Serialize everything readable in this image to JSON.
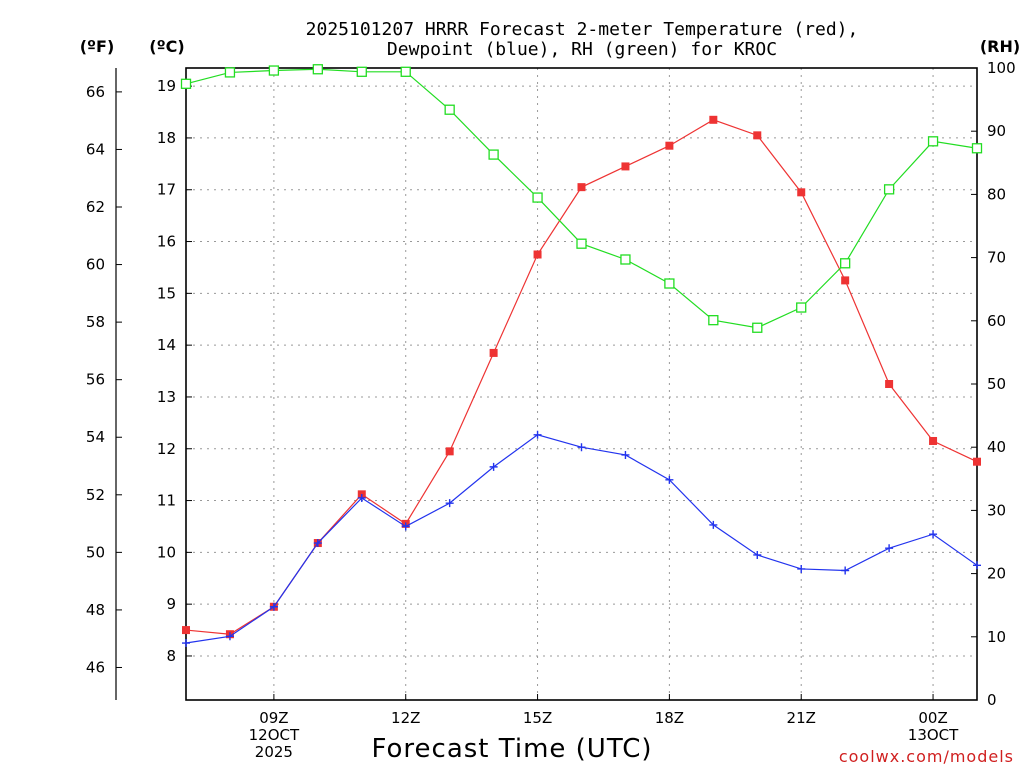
{
  "chart_data": {
    "type": "line",
    "title_line1": "2025101207 HRRR Forecast 2-meter Temperature (red),",
    "title_line2": "Dewpoint (blue), RH (green) for KROC",
    "xlabel": "Forecast Time (UTC)",
    "credit": "coolwx.com/models",
    "unit_left_f": "(ºF)",
    "unit_left_c": "(ºC)",
    "unit_right": "(RH)",
    "x_range": [
      7,
      25
    ],
    "x_ticks": [
      {
        "x": 9,
        "lines": [
          "09Z",
          "12OCT",
          "2025"
        ]
      },
      {
        "x": 12,
        "lines": [
          "12Z"
        ]
      },
      {
        "x": 15,
        "lines": [
          "15Z"
        ]
      },
      {
        "x": 18,
        "lines": [
          "18Z"
        ]
      },
      {
        "x": 21,
        "lines": [
          "21Z"
        ]
      },
      {
        "x": 24,
        "lines": [
          "00Z",
          "13OCT"
        ]
      }
    ],
    "c_axis": {
      "range": [
        7.15,
        19.35
      ],
      "ticks": [
        8,
        9,
        10,
        11,
        12,
        13,
        14,
        15,
        16,
        17,
        18,
        19
      ]
    },
    "f_axis": {
      "ticks": [
        46,
        48,
        50,
        52,
        54,
        56,
        58,
        60,
        62,
        64,
        66
      ]
    },
    "rh_axis": {
      "range": [
        0,
        100
      ],
      "ticks": [
        0,
        10,
        20,
        30,
        40,
        50,
        60,
        70,
        80,
        90,
        100
      ]
    },
    "series": [
      {
        "name": "Temperature",
        "axis": "c",
        "color": "#ee3333",
        "marker": "filled-square",
        "x": [
          7,
          8,
          9,
          10,
          11,
          12,
          13,
          14,
          15,
          16,
          17,
          18,
          19,
          20,
          21,
          22,
          23,
          24,
          25
        ],
        "values": [
          8.5,
          8.42,
          8.95,
          10.18,
          11.12,
          10.55,
          11.95,
          13.85,
          15.75,
          17.05,
          17.45,
          17.85,
          18.35,
          18.05,
          16.95,
          15.25,
          13.25,
          12.15,
          11.75
        ]
      },
      {
        "name": "Dewpoint",
        "axis": "c",
        "color": "#2233ee",
        "marker": "plus",
        "x": [
          7,
          8,
          9,
          10,
          11,
          12,
          13,
          14,
          15,
          16,
          17,
          18,
          19,
          20,
          21,
          22,
          23,
          24,
          25
        ],
        "values": [
          8.25,
          8.38,
          8.95,
          10.18,
          11.05,
          10.5,
          10.95,
          11.65,
          12.27,
          12.03,
          11.88,
          11.4,
          10.53,
          9.95,
          9.68,
          9.65,
          10.08,
          10.35,
          9.75
        ]
      },
      {
        "name": "RH",
        "axis": "rh",
        "color": "#22dd22",
        "marker": "open-square",
        "x": [
          7,
          8,
          9,
          10,
          11,
          12,
          13,
          14,
          15,
          16,
          17,
          18,
          19,
          20,
          21,
          22,
          23,
          24,
          25
        ],
        "values": [
          97.5,
          99.3,
          99.6,
          99.8,
          99.4,
          99.4,
          93.4,
          86.3,
          79.5,
          72.2,
          69.7,
          65.9,
          60.1,
          58.9,
          62.1,
          69.1,
          80.8,
          88.4,
          87.3
        ]
      }
    ]
  }
}
